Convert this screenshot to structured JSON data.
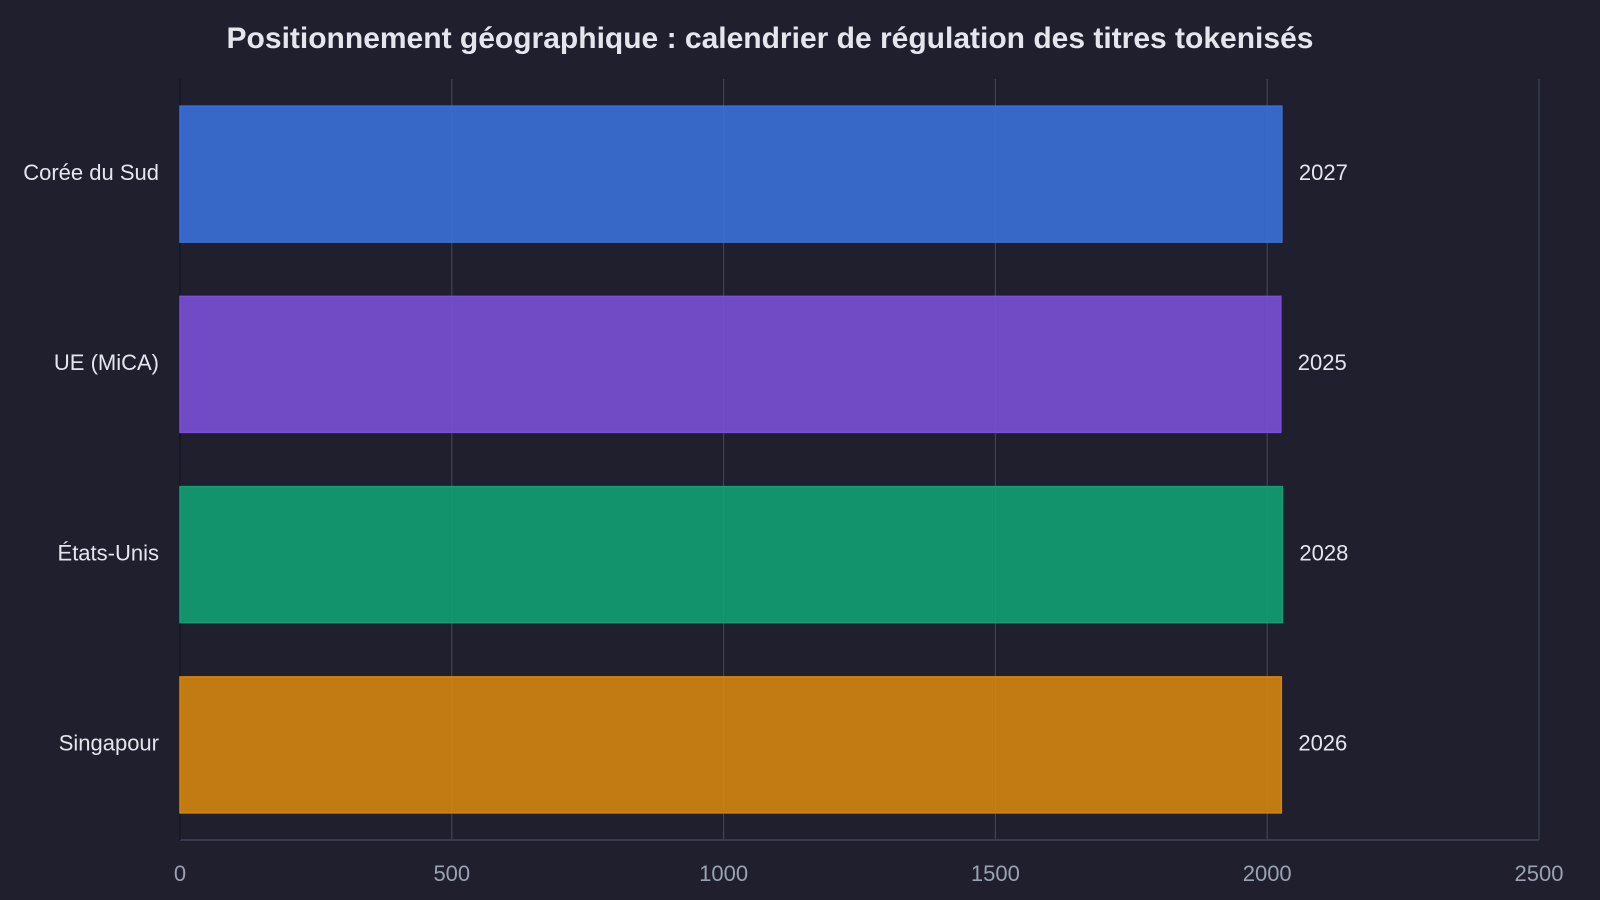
{
  "chart_data": {
    "type": "barh",
    "title": "Positionnement géographique : calendrier de régulation des titres tokenisés",
    "categories": [
      "Corée du Sud",
      "UE (MiCA)",
      "États-Unis",
      "Singapour"
    ],
    "values": [
      2027,
      2025,
      2028,
      2026
    ],
    "colors": [
      "#3a6fd8",
      "#7a4fd6",
      "#12a073",
      "#d4850f"
    ],
    "xlim": [
      0,
      2500
    ],
    "xticks": [
      0,
      500,
      1000,
      1500,
      2000,
      2500
    ],
    "grid": true
  }
}
